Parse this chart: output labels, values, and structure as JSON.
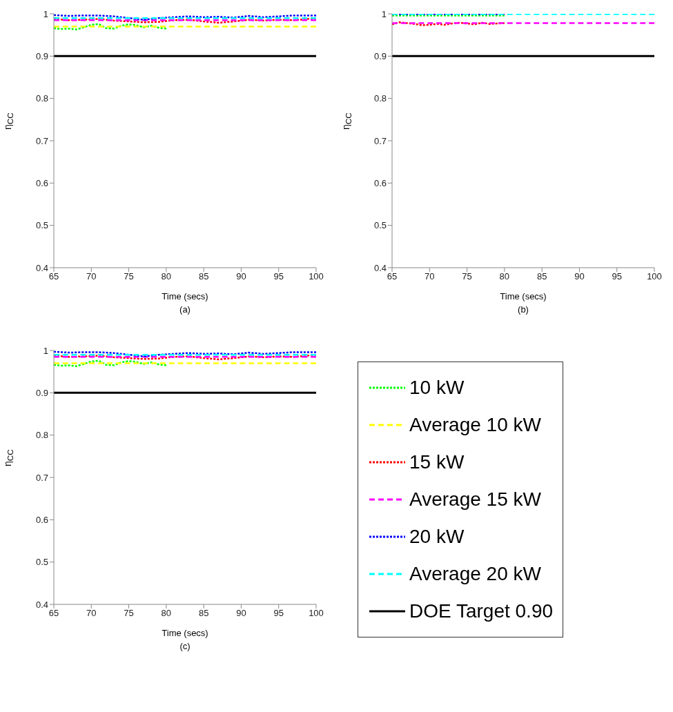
{
  "chart_data": [
    {
      "type": "line",
      "xlabel": "Time (secs)",
      "ylabel": "η$_{CC}$",
      "annotations": [
        "(a)"
      ],
      "xlim": [
        65,
        100
      ],
      "xticks": [
        65,
        70,
        75,
        80,
        85,
        90,
        95,
        100
      ],
      "ylim": [
        0.4,
        1
      ],
      "yticks": [
        0.4,
        0.5,
        0.6,
        0.7,
        0.8,
        0.9,
        1
      ],
      "legend": false,
      "marker": "none",
      "series": [
        {
          "color": "#00ff00",
          "line_style": "dotted",
          "x": [
            65,
            66,
            67,
            68,
            69,
            70,
            71,
            72,
            73,
            74,
            75,
            76,
            77,
            78,
            79,
            80
          ],
          "values": [
            0.966,
            0.964,
            0.965,
            0.963,
            0.968,
            0.974,
            0.976,
            0.966,
            0.965,
            0.972,
            0.975,
            0.973,
            0.968,
            0.972,
            0.967,
            0.965
          ]
        },
        {
          "color": "#ffff00",
          "line_style": "dashed",
          "x": [
            65,
            100
          ],
          "values": [
            0.97,
            0.97
          ]
        },
        {
          "color": "#ff0000",
          "line_style": "dotted",
          "x": [
            65,
            67,
            69,
            71,
            73,
            75,
            77,
            79,
            81,
            83,
            85,
            87,
            89,
            91,
            93,
            95,
            97,
            99,
            100
          ],
          "values": [
            0.988,
            0.985,
            0.986,
            0.988,
            0.984,
            0.982,
            0.98,
            0.981,
            0.985,
            0.986,
            0.982,
            0.979,
            0.982,
            0.986,
            0.984,
            0.986,
            0.985,
            0.988,
            0.99
          ]
        },
        {
          "color": "#ff00ff",
          "line_style": "dashed",
          "x": [
            65,
            100
          ],
          "values": [
            0.985,
            0.985
          ]
        },
        {
          "color": "#0000ff",
          "line_style": "dotted",
          "x": [
            65,
            67,
            69,
            71,
            73,
            75,
            77,
            79,
            81,
            83,
            85,
            87,
            89,
            91,
            93,
            95,
            97,
            99,
            100
          ],
          "values": [
            0.997,
            0.995,
            0.996,
            0.996,
            0.994,
            0.99,
            0.986,
            0.99,
            0.992,
            0.994,
            0.992,
            0.993,
            0.991,
            0.995,
            0.992,
            0.994,
            0.996,
            0.996,
            0.996
          ]
        },
        {
          "color": "#00ffff",
          "line_style": "dashed",
          "x": [
            65,
            100
          ],
          "values": [
            0.99,
            0.99
          ]
        },
        {
          "color": "#000000",
          "line_style": "solid",
          "x": [
            65,
            100
          ],
          "values": [
            0.9,
            0.9
          ]
        }
      ]
    },
    {
      "type": "line",
      "xlabel": "Time (secs)",
      "ylabel": "η$_{CC}$",
      "annotations": [
        "(b)"
      ],
      "xlim": [
        65,
        100
      ],
      "xticks": [
        65,
        70,
        75,
        80,
        85,
        90,
        95,
        100
      ],
      "ylim": [
        0.4,
        1
      ],
      "yticks": [
        0.4,
        0.5,
        0.6,
        0.7,
        0.8,
        0.9,
        1
      ],
      "legend": false,
      "marker": "none",
      "series": [
        {
          "color": "#00ff00",
          "line_style": "dotted",
          "x": [
            65,
            68,
            71,
            74,
            77,
            80
          ],
          "values": [
            0.996,
            0.996,
            0.996,
            0.996,
            0.996,
            0.996
          ]
        },
        {
          "color": "#ff0000",
          "line_style": "dotted",
          "x": [
            65,
            66,
            67,
            68,
            69,
            70,
            71,
            72,
            73,
            74,
            75,
            76,
            77,
            78,
            79,
            80
          ],
          "values": [
            0.975,
            0.98,
            0.978,
            0.976,
            0.973,
            0.974,
            0.976,
            0.974,
            0.977,
            0.979,
            0.977,
            0.975,
            0.979,
            0.976,
            0.977,
            0.978
          ]
        },
        {
          "color": "#ff00ff",
          "line_style": "dashed",
          "x": [
            65,
            100
          ],
          "values": [
            0.978,
            0.978
          ]
        },
        {
          "color": "#0000ff",
          "line_style": "dotted",
          "x": [
            65,
            68,
            71,
            74,
            77,
            80
          ],
          "values": [
            0.999,
            0.999,
            0.999,
            0.999,
            0.999,
            0.999
          ]
        },
        {
          "color": "#00ffff",
          "line_style": "dashed",
          "x": [
            65,
            100
          ],
          "values": [
            0.999,
            0.999
          ]
        },
        {
          "color": "#000000",
          "line_style": "solid",
          "x": [
            65,
            100
          ],
          "values": [
            0.9,
            0.9
          ]
        }
      ]
    },
    {
      "type": "line",
      "xlabel": "Time (secs)",
      "ylabel": "η$_{CC}$",
      "annotations": [
        "(c)"
      ],
      "xlim": [
        65,
        100
      ],
      "xticks": [
        65,
        70,
        75,
        80,
        85,
        90,
        95,
        100
      ],
      "ylim": [
        0.4,
        1
      ],
      "yticks": [
        0.4,
        0.5,
        0.6,
        0.7,
        0.8,
        0.9,
        1
      ],
      "legend": "right",
      "marker": "none",
      "series": [
        {
          "name": "10 kW",
          "color": "#00ff00",
          "line_style": "dotted",
          "x": [
            65,
            66,
            67,
            68,
            69,
            70,
            71,
            72,
            73,
            74,
            75,
            76,
            77,
            78,
            79,
            80
          ],
          "values": [
            0.966,
            0.964,
            0.965,
            0.963,
            0.968,
            0.974,
            0.976,
            0.966,
            0.965,
            0.972,
            0.975,
            0.973,
            0.968,
            0.972,
            0.967,
            0.965
          ]
        },
        {
          "name": "Average 10 kW",
          "color": "#ffff00",
          "line_style": "dashed",
          "x": [
            65,
            100
          ],
          "values": [
            0.97,
            0.97
          ]
        },
        {
          "name": "15 kW",
          "color": "#ff0000",
          "line_style": "dotted",
          "x": [
            65,
            67,
            69,
            71,
            73,
            75,
            77,
            79,
            81,
            83,
            85,
            87,
            89,
            91,
            93,
            95,
            97,
            99,
            100
          ],
          "values": [
            0.988,
            0.985,
            0.986,
            0.988,
            0.984,
            0.982,
            0.98,
            0.981,
            0.985,
            0.986,
            0.982,
            0.979,
            0.982,
            0.986,
            0.984,
            0.986,
            0.985,
            0.988,
            0.99
          ]
        },
        {
          "name": "Average 15 kW",
          "color": "#ff00ff",
          "line_style": "dashed",
          "x": [
            65,
            100
          ],
          "values": [
            0.985,
            0.985
          ]
        },
        {
          "name": "20 kW",
          "color": "#0000ff",
          "line_style": "dotted",
          "x": [
            65,
            67,
            69,
            71,
            73,
            75,
            77,
            79,
            81,
            83,
            85,
            87,
            89,
            91,
            93,
            95,
            97,
            99,
            100
          ],
          "values": [
            0.997,
            0.995,
            0.996,
            0.996,
            0.994,
            0.99,
            0.986,
            0.99,
            0.992,
            0.994,
            0.992,
            0.993,
            0.991,
            0.995,
            0.992,
            0.994,
            0.996,
            0.996,
            0.996
          ]
        },
        {
          "name": "Average 20 kW",
          "color": "#00ffff",
          "line_style": "dashed",
          "x": [
            65,
            100
          ],
          "values": [
            0.99,
            0.99
          ]
        },
        {
          "name": "DOE Target 0.90",
          "color": "#000000",
          "line_style": "solid",
          "x": [
            65,
            100
          ],
          "values": [
            0.9,
            0.9
          ]
        }
      ]
    }
  ]
}
